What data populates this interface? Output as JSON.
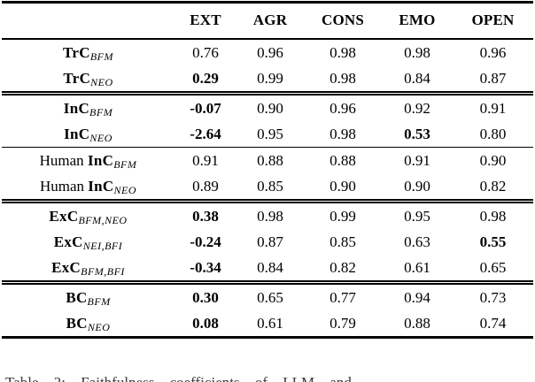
{
  "table": {
    "header": {
      "cols": [
        "EXT",
        "AGR",
        "CONS",
        "EMO",
        "OPEN"
      ]
    },
    "groups": [
      {
        "rows": [
          {
            "label": {
              "prefix": "",
              "name": "TrC",
              "sub": "BFM"
            },
            "values": [
              {
                "v": "0.76",
                "b": false
              },
              {
                "v": "0.96",
                "b": false
              },
              {
                "v": "0.98",
                "b": false
              },
              {
                "v": "0.98",
                "b": false
              },
              {
                "v": "0.96",
                "b": false
              }
            ]
          },
          {
            "label": {
              "prefix": "",
              "name": "TrC",
              "sub": "NEO"
            },
            "values": [
              {
                "v": "0.29",
                "b": true
              },
              {
                "v": "0.99",
                "b": false
              },
              {
                "v": "0.98",
                "b": false
              },
              {
                "v": "0.84",
                "b": false
              },
              {
                "v": "0.87",
                "b": false
              }
            ]
          }
        ]
      },
      {
        "rows": [
          {
            "label": {
              "prefix": "",
              "name": "InC",
              "sub": "BFM"
            },
            "values": [
              {
                "v": "-0.07",
                "b": true
              },
              {
                "v": "0.90",
                "b": false
              },
              {
                "v": "0.96",
                "b": false
              },
              {
                "v": "0.92",
                "b": false
              },
              {
                "v": "0.91",
                "b": false
              }
            ]
          },
          {
            "label": {
              "prefix": "",
              "name": "InC",
              "sub": "NEO"
            },
            "values": [
              {
                "v": "-2.64",
                "b": true
              },
              {
                "v": "0.95",
                "b": false
              },
              {
                "v": "0.98",
                "b": false
              },
              {
                "v": "0.53",
                "b": true
              },
              {
                "v": "0.80",
                "b": false
              }
            ]
          }
        ]
      },
      {
        "rows": [
          {
            "label": {
              "prefix": "Human ",
              "name": "InC",
              "sub": "BFM"
            },
            "values": [
              {
                "v": "0.91",
                "b": false
              },
              {
                "v": "0.88",
                "b": false
              },
              {
                "v": "0.88",
                "b": false
              },
              {
                "v": "0.91",
                "b": false
              },
              {
                "v": "0.90",
                "b": false
              }
            ]
          },
          {
            "label": {
              "prefix": "Human ",
              "name": "InC",
              "sub": "NEO"
            },
            "values": [
              {
                "v": "0.89",
                "b": false
              },
              {
                "v": "0.85",
                "b": false
              },
              {
                "v": "0.90",
                "b": false
              },
              {
                "v": "0.90",
                "b": false
              },
              {
                "v": "0.82",
                "b": false
              }
            ]
          }
        ]
      },
      {
        "rows": [
          {
            "label": {
              "prefix": "",
              "name": "ExC",
              "sub": "BFM,NEO"
            },
            "values": [
              {
                "v": "0.38",
                "b": true
              },
              {
                "v": "0.98",
                "b": false
              },
              {
                "v": "0.99",
                "b": false
              },
              {
                "v": "0.95",
                "b": false
              },
              {
                "v": "0.98",
                "b": false
              }
            ]
          },
          {
            "label": {
              "prefix": "",
              "name": "ExC",
              "sub": "NEI,BFI"
            },
            "values": [
              {
                "v": "-0.24",
                "b": true
              },
              {
                "v": "0.87",
                "b": false
              },
              {
                "v": "0.85",
                "b": false
              },
              {
                "v": "0.63",
                "b": false
              },
              {
                "v": "0.55",
                "b": true
              }
            ]
          },
          {
            "label": {
              "prefix": "",
              "name": "ExC",
              "sub": "BFM,BFI"
            },
            "values": [
              {
                "v": "-0.34",
                "b": true
              },
              {
                "v": "0.84",
                "b": false
              },
              {
                "v": "0.82",
                "b": false
              },
              {
                "v": "0.61",
                "b": false
              },
              {
                "v": "0.65",
                "b": false
              }
            ]
          }
        ]
      },
      {
        "rows": [
          {
            "label": {
              "prefix": "",
              "name": "BC",
              "sub": "BFM"
            },
            "values": [
              {
                "v": "0.30",
                "b": true
              },
              {
                "v": "0.65",
                "b": false
              },
              {
                "v": "0.77",
                "b": false
              },
              {
                "v": "0.94",
                "b": false
              },
              {
                "v": "0.73",
                "b": false
              }
            ]
          },
          {
            "label": {
              "prefix": "",
              "name": "BC",
              "sub": "NEO"
            },
            "values": [
              {
                "v": "0.08",
                "b": true
              },
              {
                "v": "0.61",
                "b": false
              },
              {
                "v": "0.79",
                "b": false
              },
              {
                "v": "0.88",
                "b": false
              },
              {
                "v": "0.74",
                "b": false
              }
            ]
          }
        ]
      }
    ]
  },
  "caption": {
    "clipped_text": "Table 2: Faithfulness coefficients of LLM and"
  }
}
